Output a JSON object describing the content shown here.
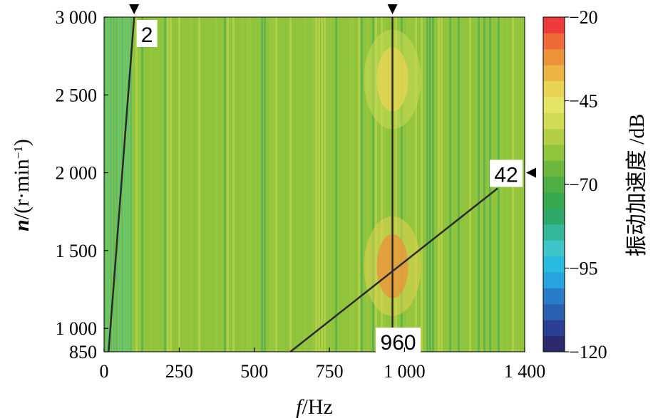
{
  "chart_data": {
    "type": "heatmap",
    "title": "",
    "xlabel": {
      "var": "f",
      "unit": "/Hz"
    },
    "ylabel": {
      "var": "n",
      "unit": "/(r·min",
      "sup": "−1",
      "close": ")"
    },
    "xlim": [
      0,
      1400
    ],
    "ylim": [
      850,
      3000
    ],
    "x_ticks": [
      {
        "value": 0,
        "label": "0"
      },
      {
        "value": 250,
        "label": "250"
      },
      {
        "value": 500,
        "label": "500"
      },
      {
        "value": 750,
        "label": "750"
      },
      {
        "value": 1000,
        "label": "1 000"
      },
      {
        "value": 1400,
        "label": "1 400"
      }
    ],
    "y_ticks": [
      {
        "value": 850,
        "label": "850"
      },
      {
        "value": 1000,
        "label": "1 000"
      },
      {
        "value": 1500,
        "label": "1 500"
      },
      {
        "value": 2000,
        "label": "2 000"
      },
      {
        "value": 2500,
        "label": "2 500"
      },
      {
        "value": 3000,
        "label": "3 000"
      }
    ],
    "colorbar": {
      "label": "振动加速度 /dB",
      "range": [
        -120,
        -20
      ],
      "ticks": [
        {
          "value": -20,
          "label": "−20"
        },
        {
          "value": -45,
          "label": "−45"
        },
        {
          "value": -70,
          "label": "−70"
        },
        {
          "value": -95,
          "label": "−95"
        },
        {
          "value": -120,
          "label": "−120"
        }
      ],
      "colors": [
        "#2b2a6e",
        "#2a3f93",
        "#2a5fb0",
        "#2a7cc8",
        "#27a3de",
        "#27bbe0",
        "#3cc6c9",
        "#35b89a",
        "#2daa6b",
        "#36a94f",
        "#4eae44",
        "#6cb83f",
        "#90c43c",
        "#b2cf46",
        "#d1dc55",
        "#e5e565",
        "#e8d451",
        "#ebb443",
        "#ec923b",
        "#ee6a37",
        "#ee3a3a"
      ]
    },
    "background_level_db": -62,
    "order_lines": [
      {
        "label": "2",
        "points": [
          [
            15,
            850
          ],
          [
            100,
            3000
          ]
        ],
        "marker": "top"
      },
      {
        "label": "42",
        "points": [
          [
            620,
            850
          ],
          [
            1310,
            1900
          ]
        ],
        "marker": "right"
      },
      {
        "label": "960",
        "points": [
          [
            960,
            850
          ],
          [
            960,
            3000
          ]
        ],
        "marker": "top"
      }
    ],
    "hotspots": [
      {
        "f": 960,
        "n": 1400,
        "level_db": -30
      },
      {
        "f": 960,
        "n": 2600,
        "level_db": -42
      }
    ]
  }
}
